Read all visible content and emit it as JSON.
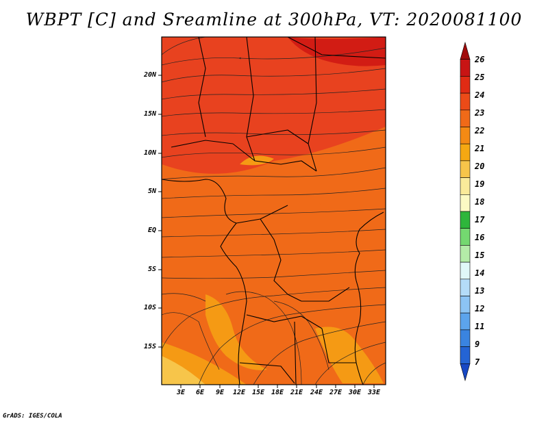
{
  "title": "WBPT [C] and Sreamline at 300hPa, VT: 2020081100",
  "credit": "GrADS: IGES/COLA",
  "map": {
    "lat_labels": [
      "20N",
      "15N",
      "10N",
      "5N",
      "EQ",
      "5S",
      "10S",
      "15S"
    ],
    "lon_labels": [
      "3E",
      "6E",
      "9E",
      "12E",
      "15E",
      "18E",
      "21E",
      "24E",
      "27E",
      "30E",
      "33E"
    ],
    "field": "Wet bulb potential temperature",
    "level": "300hPa",
    "colors": {
      "dominant_north": "#e8421f",
      "dominant_south": "#f06a18",
      "warm_patch": "#f59a14",
      "hot_patch": "#d21c14"
    }
  },
  "colorbar": {
    "labels": [
      "26",
      "25",
      "24",
      "23",
      "22",
      "21",
      "20",
      "19",
      "18",
      "17",
      "16",
      "15",
      "14",
      "13",
      "12",
      "11",
      "9",
      "7"
    ],
    "colors": [
      "#a10c0c",
      "#c81414",
      "#e02b14",
      "#ec4b18",
      "#f06a18",
      "#f48a14",
      "#f5a812",
      "#f7c54a",
      "#faea9a",
      "#fcfac4",
      "#2eb63b",
      "#74d870",
      "#b4eca8",
      "#e0f8f8",
      "#b4dcf8",
      "#8cc4f4",
      "#5ca4ec",
      "#3a84e0",
      "#2464d4",
      "#1848c4"
    ]
  }
}
